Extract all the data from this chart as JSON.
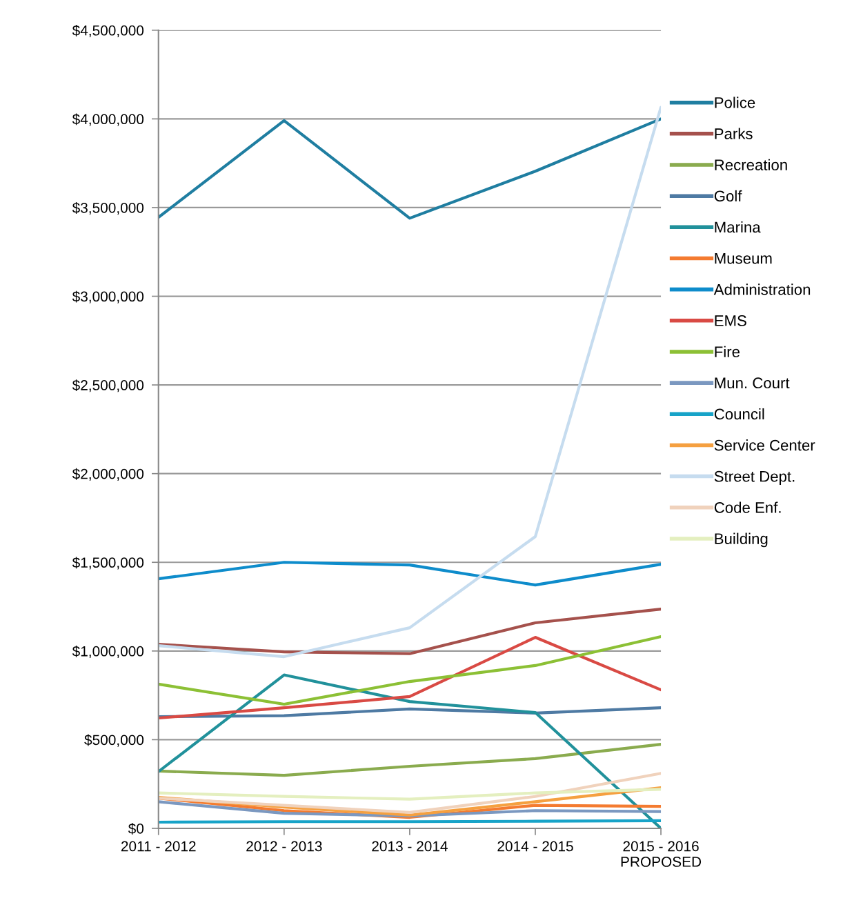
{
  "chart_data": {
    "type": "line",
    "categories": [
      "2011 - 2012",
      "2012 - 2013",
      "2013 - 2014",
      "2014 - 2015",
      "2015 - 2016\nPROPOSED"
    ],
    "series": [
      {
        "name": "Police",
        "color": "#1f7ea1",
        "values": [
          3445000,
          3990000,
          3440000,
          3705000,
          4000000
        ]
      },
      {
        "name": "Parks",
        "color": "#a5514c",
        "values": [
          1038000,
          995000,
          985000,
          1159000,
          1236000
        ]
      },
      {
        "name": "Recreation",
        "color": "#8aab4e",
        "values": [
          323000,
          299000,
          350000,
          393000,
          474000
        ]
      },
      {
        "name": "Golf",
        "color": "#4e7aa3",
        "values": [
          630000,
          635000,
          673000,
          650000,
          680000
        ]
      },
      {
        "name": "Marina",
        "color": "#21919b",
        "values": [
          320000,
          865000,
          715000,
          653000,
          0
        ]
      },
      {
        "name": "Museum",
        "color": "#f47b30",
        "values": [
          170000,
          100000,
          62000,
          130000,
          124000
        ]
      },
      {
        "name": "Administration",
        "color": "#0e8ccb",
        "values": [
          1407000,
          1500000,
          1485000,
          1372000,
          1489000
        ]
      },
      {
        "name": "EMS",
        "color": "#d94a44",
        "values": [
          622000,
          680000,
          743000,
          1077000,
          781000
        ]
      },
      {
        "name": "Fire",
        "color": "#8cc035",
        "values": [
          813000,
          700000,
          828000,
          918000,
          1081000
        ]
      },
      {
        "name": "Mun. Court",
        "color": "#7b98c0",
        "values": [
          150000,
          85000,
          70000,
          100000,
          95000
        ]
      },
      {
        "name": "Council",
        "color": "#17a3c8",
        "values": [
          35000,
          38000,
          38000,
          40000,
          43000
        ]
      },
      {
        "name": "Service Center",
        "color": "#f5a040",
        "values": [
          175000,
          120000,
          75000,
          150000,
          229000
        ]
      },
      {
        "name": "Street Dept.",
        "color": "#c6dcef",
        "values": [
          1030000,
          968000,
          1131000,
          1645000,
          4065000
        ]
      },
      {
        "name": "Code Enf.",
        "color": "#f0d2bc",
        "values": [
          170000,
          130000,
          90000,
          180000,
          310000
        ]
      },
      {
        "name": "Building",
        "color": "#e4efbf",
        "values": [
          200000,
          180000,
          165000,
          200000,
          220000
        ]
      }
    ],
    "ylim": [
      0,
      4500000
    ],
    "yticks": [
      {
        "value": 0,
        "label": "$0"
      },
      {
        "value": 500000,
        "label": "$500,000"
      },
      {
        "value": 1000000,
        "label": "$1,000,000"
      },
      {
        "value": 1500000,
        "label": "$1,500,000"
      },
      {
        "value": 2000000,
        "label": "$2,000,000"
      },
      {
        "value": 2500000,
        "label": "$2,500,000"
      },
      {
        "value": 3000000,
        "label": "$3,000,000"
      },
      {
        "value": 3500000,
        "label": "$3,500,000"
      },
      {
        "value": 4000000,
        "label": "$4,000,000"
      },
      {
        "value": 4500000,
        "label": "$4,500,000"
      }
    ],
    "grid": "y",
    "legend": "right",
    "marker": "none",
    "line_style": "solid"
  }
}
